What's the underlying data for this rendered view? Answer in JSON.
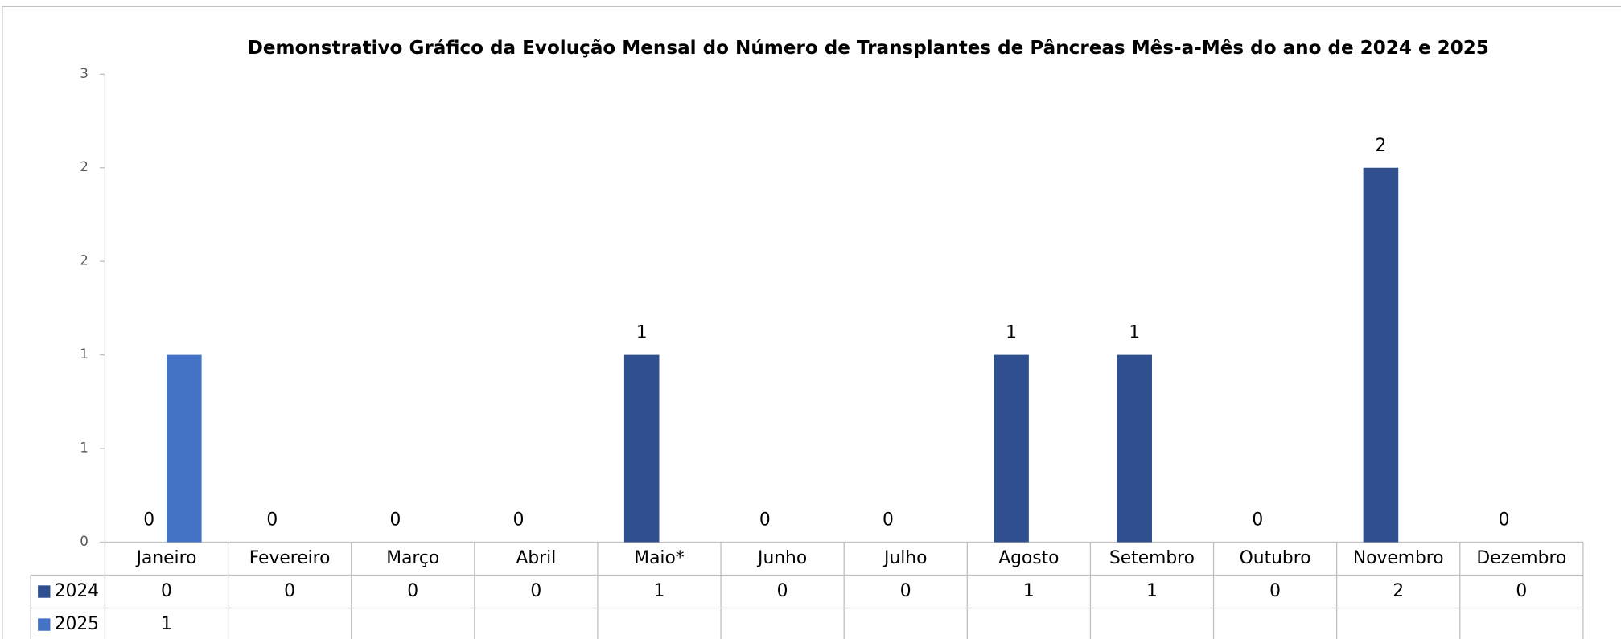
{
  "chart_data": {
    "type": "bar",
    "title": "Demonstrativo Gráfico da Evolução Mensal do Número de Transplantes de Pâncreas Mês-a-Mês do ano de  2024 e 2025",
    "categories": [
      "Janeiro",
      "Fevereiro",
      "Março",
      "Abril",
      "Maio*",
      "Junho",
      "Julho",
      "Agosto",
      "Setembro",
      "Outubro",
      "Novembro",
      "Dezembro"
    ],
    "series": [
      {
        "name": "2024",
        "color": "#2f4f8f",
        "values": [
          0,
          0,
          0,
          0,
          1,
          0,
          0,
          1,
          1,
          0,
          2,
          0
        ],
        "data_labels": true
      },
      {
        "name": "2025",
        "color": "#4472c4",
        "values": [
          1,
          null,
          null,
          null,
          null,
          null,
          null,
          null,
          null,
          null,
          null,
          null
        ],
        "data_labels": false
      }
    ],
    "ylim": [
      0,
      2.5
    ],
    "yticks": [
      0,
      {
        "value": 0.5,
        "label": "1"
      },
      1,
      {
        "value": 1.5,
        "label": "2"
      },
      2,
      {
        "value": 2.5,
        "label": "3"
      }
    ],
    "grid": false,
    "legend": "table"
  }
}
